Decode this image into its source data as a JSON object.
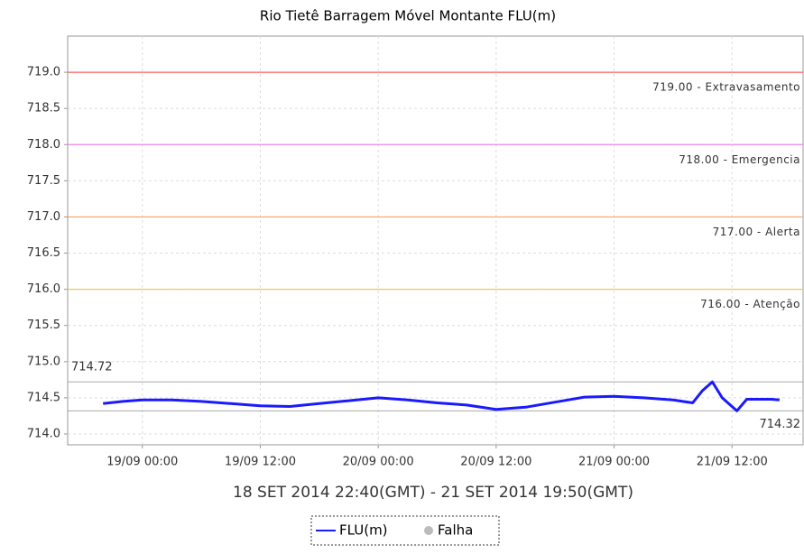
{
  "chart_data": {
    "type": "line",
    "title": "Rio Tietê Barragem Móvel Montante  FLU(m)",
    "xlabel": "18 SET 2014 22:40(GMT) - 21 SET 2014 19:50(GMT)",
    "x": [
      "18/09 20:00",
      "18/09 22:00",
      "19/09 00:00",
      "19/09 03:00",
      "19/09 06:00",
      "19/09 09:00",
      "19/09 12:00",
      "19/09 15:00",
      "19/09 18:00",
      "19/09 21:00",
      "20/09 00:00",
      "20/09 03:00",
      "20/09 06:00",
      "20/09 09:00",
      "20/09 12:00",
      "20/09 15:00",
      "20/09 18:00",
      "20/09 21:00",
      "21/09 00:00",
      "21/09 03:00",
      "21/09 06:00",
      "21/09 08:00",
      "21/09 09:00",
      "21/09 10:00",
      "21/09 11:00",
      "21/09 12:30",
      "21/09 13:30",
      "21/09 16:00",
      "21/09 16:50"
    ],
    "series": [
      {
        "name": "FLU(m)",
        "color": "#1a1aff",
        "values": [
          714.42,
          714.45,
          714.47,
          714.47,
          714.45,
          714.42,
          714.39,
          714.38,
          714.42,
          714.46,
          714.5,
          714.47,
          714.43,
          714.4,
          714.34,
          714.37,
          714.44,
          714.51,
          714.52,
          714.5,
          714.47,
          714.43,
          714.6,
          714.72,
          714.5,
          714.32,
          714.48,
          714.48,
          714.47
        ]
      }
    ],
    "xlim": [
      "18/09 16:24",
      "21/09 19:14"
    ],
    "xticks": [
      "19/09 00:00",
      "19/09 12:00",
      "20/09 00:00",
      "20/09 12:00",
      "21/09 00:00",
      "21/09 12:00"
    ],
    "ylim": [
      713.85,
      719.5
    ],
    "yticks": [
      {
        "value": 714,
        "label": "714.0"
      },
      714.5,
      {
        "value": 715,
        "label": "715.0"
      },
      715.5,
      {
        "value": 716,
        "label": "716.0"
      },
      716.5,
      {
        "value": 717,
        "label": "717.0"
      },
      717.5,
      {
        "value": 718,
        "label": "718.0"
      },
      718.5,
      {
        "value": 719,
        "label": "719.0"
      }
    ],
    "grid": true,
    "thresholds": [
      {
        "value": 719,
        "label": "719.00 - Extravasamento",
        "color": "#ff5c5c"
      },
      {
        "value": 718,
        "label": "718.00 - Emergencia",
        "color": "#ee82ee"
      },
      {
        "value": 717,
        "label": "717.00 - Alerta",
        "color": "#ffa060"
      },
      {
        "value": 716,
        "label": "716.00 - Atenção",
        "color": "#e8cc5a"
      }
    ],
    "extremes": [
      {
        "value": 714.72,
        "label": "714.72"
      },
      {
        "value": 714.32,
        "label": "714.32"
      }
    ],
    "legend_extra": {
      "name": "Falha",
      "color": "#bbbbbb"
    }
  }
}
